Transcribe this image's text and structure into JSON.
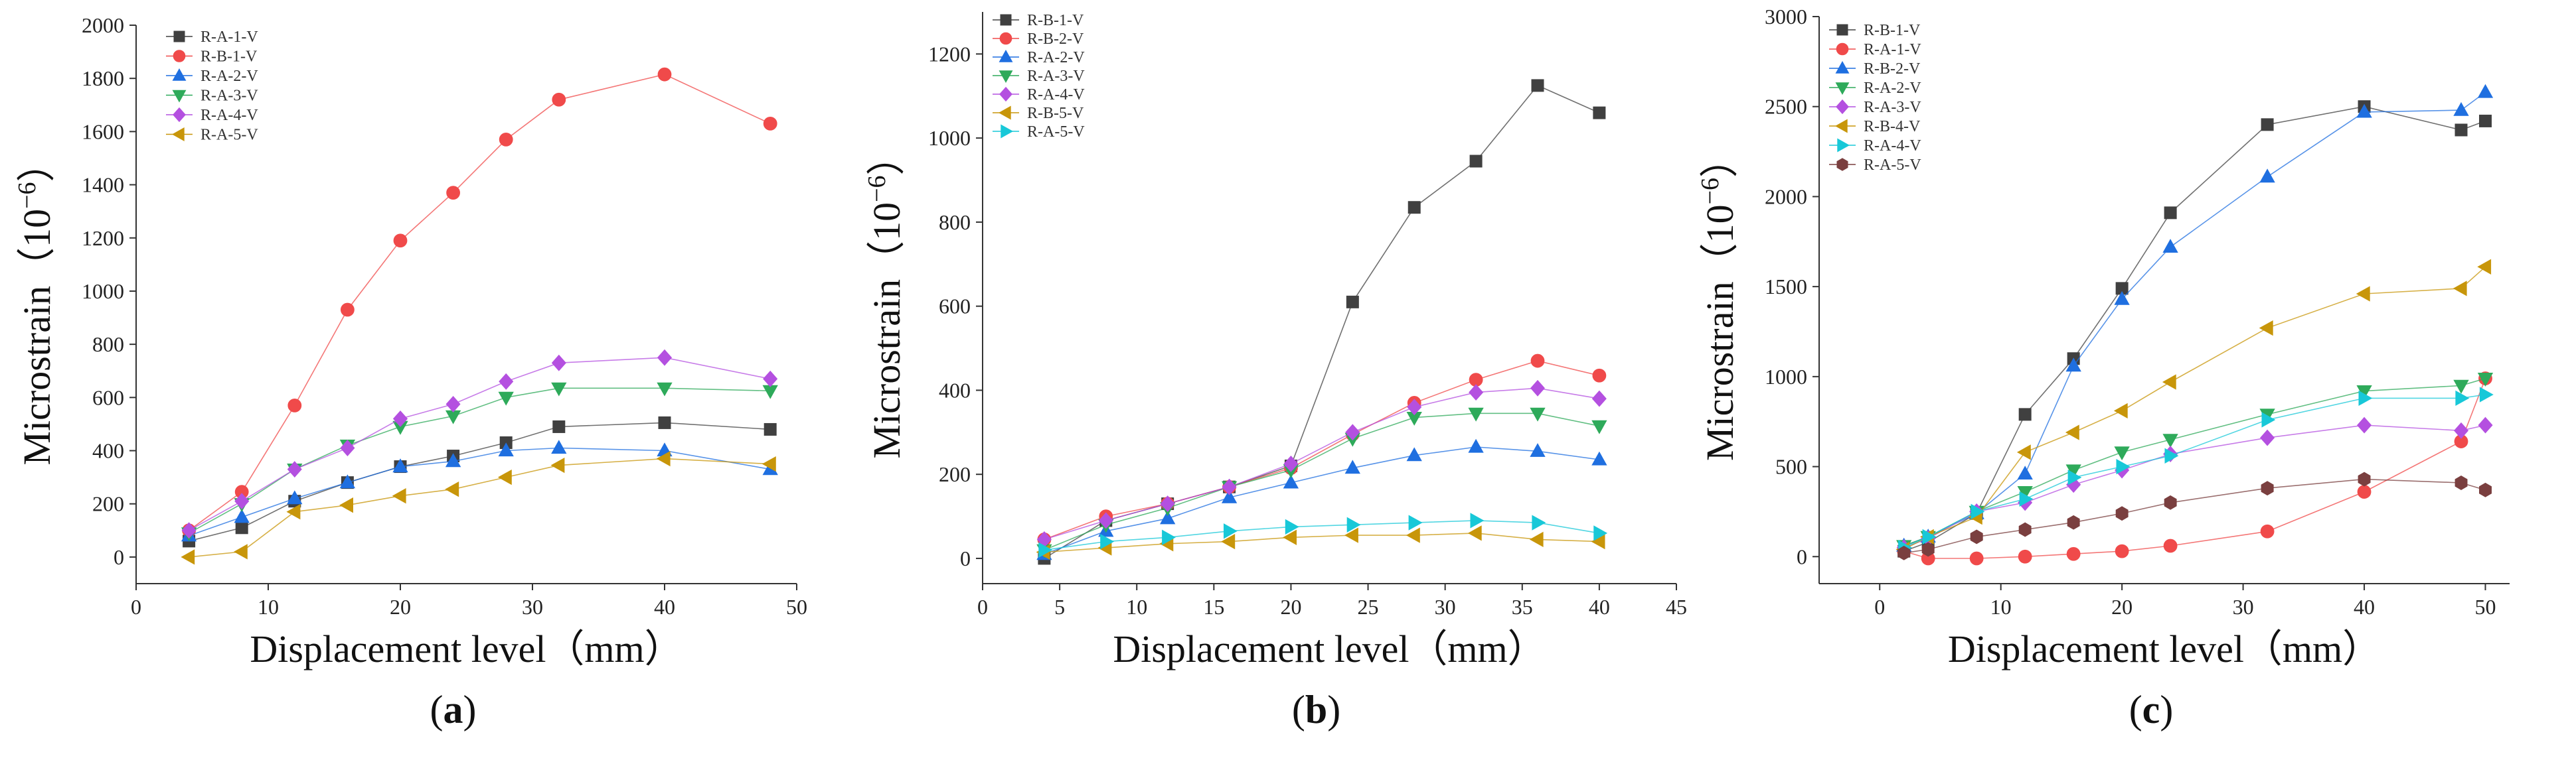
{
  "figure": {
    "panels": [
      "(a)",
      "(b)",
      "(c)"
    ]
  },
  "chart_data": [
    {
      "type": "line",
      "panel_label_prefix": "(",
      "panel_letter": "a",
      "panel_label_suffix": ")",
      "xlabel": "Displacement level（mm）",
      "ylabel": "Microstrain（10",
      "ylabel_exp": "−6",
      "ylabel_close": "）",
      "xlim": [
        0,
        50
      ],
      "ylim": [
        -100,
        2000
      ],
      "xticks": [
        0,
        10,
        20,
        30,
        40,
        50
      ],
      "xtick_labels": [
        "0",
        "10",
        "20",
        "30",
        "40",
        "50"
      ],
      "yticks": [
        0,
        200,
        400,
        600,
        800,
        1000,
        1200,
        1400,
        1600,
        1800,
        2000
      ],
      "ytick_labels": [
        "0",
        "200",
        "400",
        "600",
        "800",
        "1000",
        "1200",
        "1400",
        "1600",
        "1800",
        "2000"
      ],
      "legend_position": "top-left",
      "series": [
        {
          "name": "R-A-1-V",
          "color": "#404040",
          "marker": "square",
          "x": [
            4,
            8,
            12,
            16,
            20,
            24,
            28,
            32,
            40,
            48
          ],
          "y": [
            60,
            110,
            210,
            280,
            340,
            380,
            430,
            490,
            505,
            480
          ]
        },
        {
          "name": "R-B-1-V",
          "color": "#f04a4a",
          "marker": "circle",
          "x": [
            4,
            8,
            12,
            16,
            20,
            24,
            28,
            32,
            40,
            48
          ],
          "y": [
            100,
            245,
            570,
            930,
            1190,
            1370,
            1570,
            1720,
            1815,
            1630
          ]
        },
        {
          "name": "R-A-2-V",
          "color": "#1f6fe0",
          "marker": "triangle-up",
          "x": [
            4,
            8,
            12,
            16,
            20,
            24,
            28,
            32,
            40,
            48
          ],
          "y": [
            80,
            150,
            220,
            280,
            340,
            360,
            400,
            410,
            400,
            330
          ]
        },
        {
          "name": "R-A-3-V",
          "color": "#2eaa5a",
          "marker": "triangle-down",
          "x": [
            4,
            8,
            12,
            16,
            20,
            24,
            28,
            32,
            40,
            48
          ],
          "y": [
            90,
            200,
            330,
            420,
            490,
            530,
            600,
            635,
            635,
            625
          ]
        },
        {
          "name": "R-A-4-V",
          "color": "#b450e0",
          "marker": "diamond",
          "x": [
            4,
            8,
            12,
            16,
            20,
            24,
            28,
            32,
            40,
            48
          ],
          "y": [
            100,
            210,
            330,
            410,
            520,
            575,
            660,
            730,
            750,
            670
          ]
        },
        {
          "name": "R-A-5-V",
          "color": "#c8960a",
          "marker": "triangle-left",
          "x": [
            4,
            8,
            12,
            16,
            20,
            24,
            28,
            32,
            40,
            48
          ],
          "y": [
            0,
            20,
            170,
            195,
            230,
            255,
            300,
            345,
            370,
            350
          ]
        }
      ]
    },
    {
      "type": "line",
      "panel_label_prefix": "(",
      "panel_letter": "b",
      "panel_label_suffix": ")",
      "xlabel": "Displacement level（mm）",
      "ylabel": "Microstrain（10",
      "ylabel_exp": "−6",
      "ylabel_close": "）",
      "xlim": [
        0,
        45
      ],
      "ylim": [
        -60,
        1300
      ],
      "xticks": [
        0,
        5,
        10,
        15,
        20,
        25,
        30,
        35,
        40,
        45
      ],
      "xtick_labels": [
        "0",
        "5",
        "10",
        "15",
        "20",
        "25",
        "30",
        "35",
        "40",
        "45"
      ],
      "yticks": [
        0,
        200,
        400,
        600,
        800,
        1000,
        1200
      ],
      "ytick_labels": [
        "0",
        "200",
        "400",
        "600",
        "800",
        "1000",
        "1200"
      ],
      "legend_position": "top-left",
      "series": [
        {
          "name": "R-B-1-V",
          "color": "#404040",
          "marker": "square",
          "x": [
            4,
            8,
            12,
            16,
            20,
            24,
            28,
            32,
            36,
            40
          ],
          "y": [
            0,
            90,
            130,
            170,
            220,
            610,
            835,
            945,
            1125,
            1060
          ]
        },
        {
          "name": "R-B-2-V",
          "color": "#f04a4a",
          "marker": "circle",
          "x": [
            4,
            8,
            12,
            16,
            20,
            24,
            28,
            32,
            36,
            40
          ],
          "y": [
            45,
            100,
            130,
            170,
            215,
            295,
            370,
            425,
            470,
            435
          ]
        },
        {
          "name": "R-A-2-V",
          "color": "#1f6fe0",
          "marker": "triangle-up",
          "x": [
            4,
            8,
            12,
            16,
            20,
            24,
            28,
            32,
            36,
            40
          ],
          "y": [
            10,
            65,
            95,
            145,
            180,
            215,
            245,
            265,
            255,
            235
          ]
        },
        {
          "name": "R-A-3-V",
          "color": "#2eaa5a",
          "marker": "triangle-down",
          "x": [
            4,
            8,
            12,
            16,
            20,
            24,
            28,
            32,
            36,
            40
          ],
          "y": [
            20,
            80,
            120,
            170,
            210,
            285,
            335,
            345,
            345,
            315
          ]
        },
        {
          "name": "R-A-4-V",
          "color": "#b450e0",
          "marker": "diamond",
          "x": [
            4,
            8,
            12,
            16,
            20,
            24,
            28,
            32,
            36,
            40
          ],
          "y": [
            45,
            90,
            130,
            170,
            225,
            300,
            360,
            395,
            405,
            380
          ]
        },
        {
          "name": "R-B-5-V",
          "color": "#c8960a",
          "marker": "triangle-left",
          "x": [
            4,
            8,
            12,
            16,
            20,
            24,
            28,
            32,
            36,
            40
          ],
          "y": [
            15,
            25,
            35,
            40,
            50,
            55,
            55,
            60,
            45,
            40
          ]
        },
        {
          "name": "R-A-5-V",
          "color": "#18c8d8",
          "marker": "triangle-right",
          "x": [
            4,
            8,
            12,
            16,
            20,
            24,
            28,
            32,
            36,
            40
          ],
          "y": [
            20,
            40,
            50,
            65,
            75,
            80,
            85,
            90,
            85,
            60
          ]
        }
      ]
    },
    {
      "type": "line",
      "panel_label_prefix": "(",
      "panel_letter": "c",
      "panel_label_suffix": ")",
      "xlabel": "Displacement level（mm）",
      "ylabel": "Microstrain（10",
      "ylabel_exp": "−6",
      "ylabel_close": "）",
      "xlim": [
        -5,
        52
      ],
      "ylim": [
        -150,
        3000
      ],
      "xticks": [
        0,
        10,
        20,
        30,
        40,
        50
      ],
      "xtick_labels": [
        "0",
        "10",
        "20",
        "30",
        "40",
        "50"
      ],
      "yticks": [
        0,
        500,
        1000,
        1500,
        2000,
        2500,
        3000
      ],
      "ytick_labels": [
        "0",
        "500",
        "1000",
        "1500",
        "2000",
        "2500",
        "3000"
      ],
      "legend_position": "top-left",
      "series": [
        {
          "name": "R-B-1-V",
          "color": "#404040",
          "marker": "square",
          "x": [
            2,
            4,
            8,
            12,
            16,
            20,
            24,
            32,
            40,
            48,
            50
          ],
          "y": [
            30,
            80,
            240,
            790,
            1100,
            1490,
            1910,
            2400,
            2500,
            2370,
            2420
          ]
        },
        {
          "name": "R-A-1-V",
          "color": "#f04a4a",
          "marker": "circle",
          "x": [
            2,
            4,
            8,
            12,
            16,
            20,
            24,
            32,
            40,
            48,
            50
          ],
          "y": [
            30,
            -10,
            -10,
            0,
            15,
            30,
            60,
            140,
            360,
            640,
            990
          ]
        },
        {
          "name": "R-B-2-V",
          "color": "#1f6fe0",
          "marker": "triangle-up",
          "x": [
            2,
            4,
            8,
            12,
            16,
            20,
            24,
            32,
            40,
            48,
            50
          ],
          "y": [
            60,
            110,
            240,
            460,
            1060,
            1430,
            1720,
            2110,
            2470,
            2480,
            2580
          ]
        },
        {
          "name": "R-A-2-V",
          "color": "#2eaa5a",
          "marker": "triangle-down",
          "x": [
            2,
            4,
            8,
            12,
            16,
            20,
            24,
            32,
            40,
            48,
            50
          ],
          "y": [
            60,
            110,
            250,
            360,
            480,
            580,
            650,
            790,
            920,
            950,
            990
          ]
        },
        {
          "name": "R-A-3-V",
          "color": "#b450e0",
          "marker": "diamond",
          "x": [
            2,
            4,
            8,
            12,
            16,
            20,
            24,
            32,
            40,
            48,
            50
          ],
          "y": [
            50,
            100,
            250,
            300,
            400,
            480,
            570,
            660,
            730,
            700,
            730
          ]
        },
        {
          "name": "R-B-4-V",
          "color": "#c8960a",
          "marker": "triangle-left",
          "x": [
            2,
            4,
            8,
            12,
            16,
            20,
            24,
            32,
            40,
            48,
            50
          ],
          "y": [
            40,
            110,
            220,
            580,
            690,
            810,
            970,
            1270,
            1460,
            1490,
            1610
          ]
        },
        {
          "name": "R-A-4-V",
          "color": "#18c8d8",
          "marker": "triangle-right",
          "x": [
            2,
            4,
            8,
            12,
            16,
            20,
            24,
            32,
            40,
            48,
            50
          ],
          "y": [
            50,
            110,
            250,
            320,
            440,
            500,
            560,
            760,
            880,
            880,
            900
          ]
        },
        {
          "name": "R-A-5-V",
          "color": "#7a3f3f",
          "marker": "hexagon",
          "x": [
            2,
            4,
            8,
            12,
            16,
            20,
            24,
            32,
            40,
            48,
            50
          ],
          "y": [
            20,
            40,
            110,
            150,
            190,
            240,
            300,
            380,
            430,
            410,
            370
          ]
        }
      ]
    }
  ]
}
